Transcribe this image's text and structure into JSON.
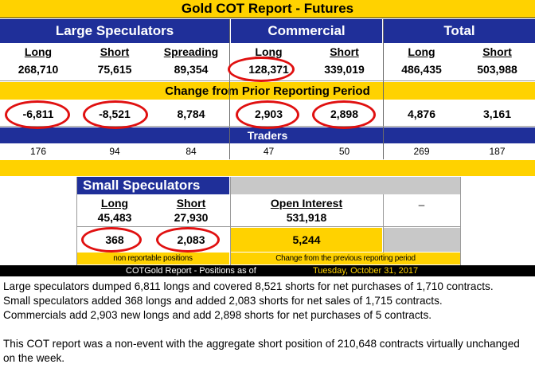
{
  "title": "Gold COT Report - Futures",
  "groups": {
    "large_speculators": "Large Speculators",
    "commercial": "Commercial",
    "total": "Total"
  },
  "headers": {
    "long": "Long",
    "short": "Short",
    "spreading": "Spreading"
  },
  "positions": {
    "ls_long": "268,710",
    "ls_short": "75,615",
    "ls_spreading": "89,354",
    "com_long": "128,371",
    "com_short": "339,019",
    "tot_long": "486,435",
    "tot_short": "503,988"
  },
  "change_label": "Change from Prior Reporting Period",
  "changes": {
    "ls_long": "-6,811",
    "ls_short": "-8,521",
    "ls_spreading": "8,784",
    "com_long": "2,903",
    "com_short": "2,898",
    "tot_long": "4,876",
    "tot_short": "3,161"
  },
  "traders_label": "Traders",
  "traders": [
    "176",
    "94",
    "84",
    "47",
    "50",
    "269",
    "187"
  ],
  "small_speculators": {
    "title": "Small Speculators",
    "long_label": "Long",
    "short_label": "Short",
    "long": "45,483",
    "short": "27,930",
    "change_long": "368",
    "change_short": "2,083",
    "footnote": "non reportable positions"
  },
  "open_interest": {
    "label": "Open Interest",
    "value": "531,918",
    "change": "5,244",
    "footnote": "Change from the previous reporting period",
    "dash": "_"
  },
  "footer": {
    "prefix": "COTGold Report - Positions as of",
    "date": "Tuesday, October 31, 2017"
  },
  "commentary": [
    "Large speculators dumped 6,811 longs and covered 8,521 shorts for net purchases of 1,710 contracts.",
    "Small speculators added 368 longs and added 2,083 shorts for net sales of 1,715 contracts.",
    "Commercials add 2,903 new longs and add 2,898 shorts for net purchases of 5 contracts."
  ],
  "conclusion": "This COT report was a non-event with the aggregate short position of 210,648 contracts virtually unchanged on the week.",
  "colors": {
    "gold": "#ffd200",
    "navy": "#1f2f99",
    "circle": "#e01010",
    "footer_date": "#ffd200"
  }
}
